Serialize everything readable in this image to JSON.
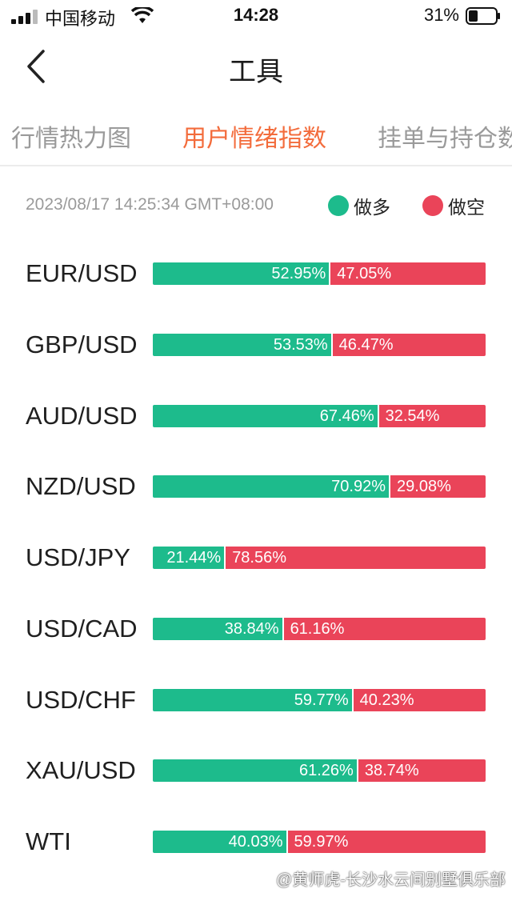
{
  "status_bar": {
    "carrier": "中国移动",
    "time": "14:28",
    "battery": "31%"
  },
  "header": {
    "title": "工具"
  },
  "tabs": [
    {
      "label": "行情热力图",
      "active": false
    },
    {
      "label": "用户情绪指数",
      "active": true
    },
    {
      "label": "挂单与持仓数",
      "active": false
    }
  ],
  "meta": {
    "timestamp": "2023/08/17 14:25:34 GMT+08:00"
  },
  "legend": {
    "long_label": "做多",
    "short_label": "做空"
  },
  "colors": {
    "long": "#1dbb8c",
    "short": "#ea4459",
    "accent": "#f36c3c"
  },
  "sentiment": [
    {
      "pair": "EUR/USD",
      "long": 52.95,
      "short": 47.05,
      "long_text": "52.95%",
      "short_text": "47.05%"
    },
    {
      "pair": "GBP/USD",
      "long": 53.53,
      "short": 46.47,
      "long_text": "53.53%",
      "short_text": "46.47%"
    },
    {
      "pair": "AUD/USD",
      "long": 67.46,
      "short": 32.54,
      "long_text": "67.46%",
      "short_text": "32.54%"
    },
    {
      "pair": "NZD/USD",
      "long": 70.92,
      "short": 29.08,
      "long_text": "70.92%",
      "short_text": "29.08%"
    },
    {
      "pair": "USD/JPY",
      "long": 21.44,
      "short": 78.56,
      "long_text": "21.44%",
      "short_text": "78.56%"
    },
    {
      "pair": "USD/CAD",
      "long": 38.84,
      "short": 61.16,
      "long_text": "38.84%",
      "short_text": "61.16%"
    },
    {
      "pair": "USD/CHF",
      "long": 59.77,
      "short": 40.23,
      "long_text": "59.77%",
      "short_text": "40.23%"
    },
    {
      "pair": "XAU/USD",
      "long": 61.26,
      "short": 38.74,
      "long_text": "61.26%",
      "short_text": "38.74%"
    },
    {
      "pair": "WTI",
      "long": 40.03,
      "short": 59.97,
      "long_text": "40.03%",
      "short_text": "59.97%"
    }
  ],
  "watermark": "@黄师虎-长沙水云间别墅俱乐部"
}
